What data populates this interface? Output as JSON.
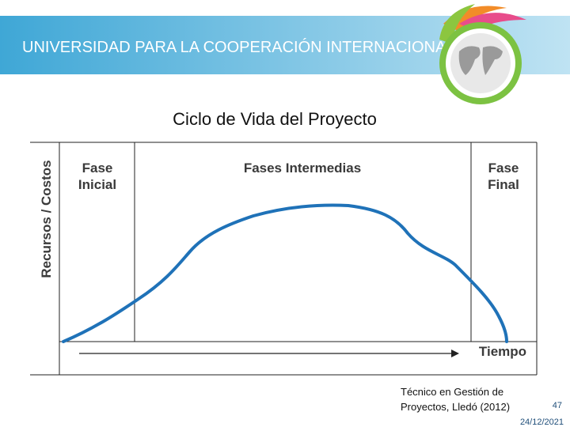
{
  "header": {
    "banner": "UNIVERSIDAD PARA LA COOPERACIÓN INTERNACIONAL"
  },
  "slide": {
    "title": "Ciclo de Vida del Proyecto"
  },
  "diagram": {
    "y_label": "Recursos / Costos",
    "x_label": "Tiempo",
    "phases": [
      {
        "lines": [
          "Fase",
          "Inicial"
        ]
      },
      {
        "lines": [
          "Fases Intermedias"
        ]
      },
      {
        "lines": [
          "Fase",
          "Final"
        ]
      }
    ]
  },
  "footer": {
    "source": [
      "Técnico en Gestión de",
      "Proyectos, Lledó (2012)"
    ],
    "page": "47",
    "date": "24/12/2021"
  }
}
